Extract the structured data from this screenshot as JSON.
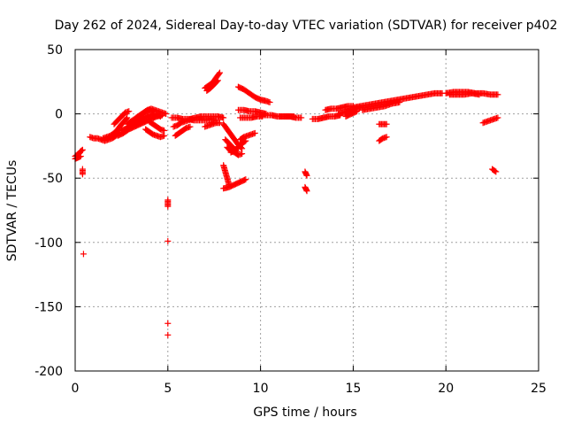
{
  "chart_data": {
    "type": "scatter",
    "title": "Day 262 of 2024, Sidereal Day-to-day VTEC variation (SDTVAR) for receiver p402",
    "xlabel": "GPS time / hours",
    "ylabel": "SDTVAR / TECUs",
    "xlim": [
      0,
      25
    ],
    "ylim": [
      -200,
      50
    ],
    "xticks": [
      0,
      5,
      10,
      15,
      20,
      25
    ],
    "yticks": [
      -200,
      -150,
      -100,
      -50,
      0,
      50
    ],
    "xtick_labels": [
      "0",
      "5",
      "10",
      "15",
      "20",
      "25"
    ],
    "ytick_labels": [
      "-200",
      "-150",
      "-100",
      "-50",
      "0",
      "50"
    ],
    "grid": true,
    "marker": "+",
    "color": "#ff0000",
    "series": [
      {
        "name": "p402",
        "segments": [
          [
            [
              0.0,
              -33
            ],
            [
              0.1,
              -32
            ],
            [
              0.2,
              -31
            ],
            [
              0.3,
              -29
            ],
            [
              0.4,
              -28
            ]
          ],
          [
            [
              0.0,
              -35
            ],
            [
              0.15,
              -34
            ],
            [
              0.3,
              -33
            ]
          ],
          [
            [
              0.4,
              -43
            ],
            [
              0.4,
              -47
            ]
          ],
          [
            [
              0.45,
              -109
            ]
          ],
          [
            [
              0.8,
              -18
            ],
            [
              1.0,
              -19
            ],
            [
              1.2,
              -19
            ],
            [
              1.4,
              -20
            ],
            [
              1.6,
              -21
            ],
            [
              1.8,
              -20
            ],
            [
              2.0,
              -19
            ],
            [
              2.2,
              -17
            ],
            [
              2.4,
              -14
            ]
          ],
          [
            [
              1.5,
              -19
            ],
            [
              1.7,
              -18
            ],
            [
              1.9,
              -17
            ],
            [
              2.1,
              -15
            ],
            [
              2.3,
              -12
            ],
            [
              2.5,
              -8
            ],
            [
              2.7,
              -5
            ],
            [
              2.8,
              -3
            ]
          ],
          [
            [
              2.1,
              -8
            ],
            [
              2.3,
              -5
            ],
            [
              2.5,
              -2
            ],
            [
              2.7,
              1
            ],
            [
              2.9,
              2
            ]
          ],
          [
            [
              2.3,
              -17
            ],
            [
              2.6,
              -15
            ],
            [
              2.9,
              -12
            ],
            [
              3.2,
              -10
            ],
            [
              3.5,
              -8
            ],
            [
              3.8,
              -6
            ],
            [
              4.1,
              -4
            ],
            [
              4.4,
              -2
            ],
            [
              4.7,
              -1
            ]
          ],
          [
            [
              2.5,
              -13
            ],
            [
              2.8,
              -11
            ],
            [
              3.1,
              -8
            ],
            [
              3.4,
              -5
            ],
            [
              3.7,
              -3
            ],
            [
              4.0,
              -1
            ],
            [
              4.3,
              0
            ],
            [
              4.6,
              -2
            ]
          ],
          [
            [
              2.8,
              -8
            ],
            [
              3.1,
              -5
            ],
            [
              3.4,
              -2
            ],
            [
              3.6,
              0
            ],
            [
              3.8,
              2
            ],
            [
              4.0,
              3
            ],
            [
              4.2,
              2
            ]
          ],
          [
            [
              3.3,
              -3
            ],
            [
              3.5,
              -1
            ],
            [
              3.7,
              1
            ],
            [
              3.9,
              3
            ],
            [
              4.1,
              4
            ],
            [
              4.3,
              3
            ],
            [
              4.5,
              2
            ],
            [
              4.7,
              1
            ],
            [
              4.9,
              0
            ]
          ],
          [
            [
              3.8,
              -12
            ],
            [
              4.0,
              -14
            ],
            [
              4.2,
              -16
            ],
            [
              4.4,
              -17
            ],
            [
              4.6,
              -18
            ],
            [
              4.8,
              -17
            ]
          ],
          [
            [
              4.0,
              -6
            ],
            [
              4.2,
              -8
            ],
            [
              4.4,
              -10
            ],
            [
              4.6,
              -12
            ],
            [
              4.8,
              -13
            ]
          ],
          [
            [
              5.0,
              -67
            ],
            [
              5.0,
              -72
            ]
          ],
          [
            [
              5.0,
              -99
            ]
          ],
          [
            [
              5.0,
              -163
            ]
          ],
          [
            [
              5.0,
              -172
            ]
          ],
          [
            [
              5.2,
              -3
            ],
            [
              5.5,
              -3
            ],
            [
              5.8,
              -4
            ],
            [
              6.1,
              -4
            ],
            [
              6.4,
              -5
            ],
            [
              6.7,
              -5
            ],
            [
              7.0,
              -5
            ],
            [
              7.3,
              -5
            ],
            [
              7.6,
              -5
            ]
          ],
          [
            [
              5.3,
              -10
            ],
            [
              5.5,
              -9
            ],
            [
              5.7,
              -7
            ],
            [
              5.9,
              -6
            ],
            [
              6.1,
              -5
            ],
            [
              6.3,
              -4
            ]
          ],
          [
            [
              5.4,
              -17
            ],
            [
              5.6,
              -15
            ],
            [
              5.8,
              -13
            ],
            [
              6.0,
              -11
            ],
            [
              6.2,
              -10
            ]
          ],
          [
            [
              6.2,
              -4
            ],
            [
              6.5,
              -3
            ],
            [
              6.8,
              -2
            ],
            [
              7.1,
              -2
            ],
            [
              7.4,
              -2
            ],
            [
              7.7,
              -2
            ],
            [
              8.0,
              -3
            ]
          ],
          [
            [
              7.0,
              -10
            ],
            [
              7.2,
              -9
            ],
            [
              7.4,
              -8
            ],
            [
              7.6,
              -7
            ],
            [
              7.8,
              -7
            ]
          ],
          [
            [
              7.0,
              20
            ],
            [
              7.2,
              22
            ],
            [
              7.4,
              24
            ],
            [
              7.6,
              28
            ],
            [
              7.8,
              32
            ]
          ],
          [
            [
              7.1,
              18
            ],
            [
              7.3,
              20
            ],
            [
              7.5,
              23
            ],
            [
              7.7,
              26
            ]
          ],
          [
            [
              8.0,
              -8
            ],
            [
              8.2,
              -12
            ],
            [
              8.4,
              -16
            ],
            [
              8.6,
              -20
            ],
            [
              8.8,
              -24
            ],
            [
              9.0,
              -27
            ]
          ],
          [
            [
              8.1,
              -20
            ],
            [
              8.3,
              -23
            ],
            [
              8.5,
              -26
            ],
            [
              8.7,
              -29
            ]
          ],
          [
            [
              8.2,
              -26
            ],
            [
              8.4,
              -29
            ],
            [
              8.6,
              -30
            ],
            [
              8.8,
              -32
            ],
            [
              9.0,
              -31
            ]
          ],
          [
            [
              8.0,
              -40
            ],
            [
              8.1,
              -45
            ],
            [
              8.2,
              -50
            ],
            [
              8.3,
              -55
            ]
          ],
          [
            [
              8.0,
              -58
            ],
            [
              8.3,
              -57
            ],
            [
              8.6,
              -55
            ],
            [
              8.9,
              -53
            ],
            [
              9.2,
              -51
            ]
          ],
          [
            [
              8.9,
              -20
            ],
            [
              9.1,
              -18
            ],
            [
              9.3,
              -17
            ],
            [
              9.5,
              -16
            ],
            [
              9.7,
              -15
            ]
          ],
          [
            [
              8.4,
              -30
            ],
            [
              8.6,
              -28
            ],
            [
              8.8,
              -26
            ],
            [
              9.0,
              -23
            ],
            [
              9.2,
              -21
            ]
          ],
          [
            [
              8.8,
              21
            ],
            [
              9.1,
              19
            ],
            [
              9.4,
              16
            ],
            [
              9.7,
              13
            ],
            [
              10.0,
              11
            ],
            [
              10.3,
              10
            ],
            [
              10.5,
              9
            ]
          ],
          [
            [
              8.8,
              3
            ],
            [
              9.1,
              3
            ],
            [
              9.4,
              2
            ],
            [
              9.7,
              2
            ],
            [
              10.0,
              1
            ],
            [
              10.3,
              0
            ]
          ],
          [
            [
              8.9,
              -3
            ],
            [
              9.2,
              -3
            ],
            [
              9.5,
              -3
            ],
            [
              9.8,
              -2
            ],
            [
              10.1,
              -2
            ]
          ],
          [
            [
              10.0,
              -1
            ],
            [
              10.3,
              -1
            ],
            [
              10.6,
              -1
            ],
            [
              10.9,
              -2
            ],
            [
              11.2,
              -2
            ],
            [
              11.5,
              -2
            ],
            [
              11.8,
              -2
            ]
          ],
          [
            [
              11.0,
              -2
            ],
            [
              11.3,
              -2
            ],
            [
              11.6,
              -2
            ],
            [
              11.9,
              -3
            ],
            [
              12.2,
              -3
            ]
          ],
          [
            [
              12.4,
              -45
            ],
            [
              12.5,
              -48
            ]
          ],
          [
            [
              12.4,
              -57
            ],
            [
              12.5,
              -60
            ]
          ],
          [
            [
              12.8,
              -4
            ],
            [
              13.1,
              -4
            ],
            [
              13.4,
              -3
            ],
            [
              13.7,
              -2
            ],
            [
              14.0,
              -2
            ],
            [
              14.3,
              -1
            ]
          ],
          [
            [
              13.5,
              3
            ],
            [
              13.8,
              4
            ],
            [
              14.1,
              4
            ],
            [
              14.4,
              5
            ],
            [
              14.7,
              6
            ],
            [
              15.0,
              6
            ]
          ],
          [
            [
              14.2,
              0
            ],
            [
              14.5,
              1
            ],
            [
              14.8,
              3
            ],
            [
              15.1,
              4
            ],
            [
              15.4,
              5
            ]
          ],
          [
            [
              14.6,
              -2
            ],
            [
              14.9,
              0
            ],
            [
              15.2,
              2
            ]
          ],
          [
            [
              15.0,
              5
            ],
            [
              15.4,
              6
            ],
            [
              15.8,
              7
            ],
            [
              16.2,
              8
            ],
            [
              16.6,
              9
            ],
            [
              17.0,
              10
            ],
            [
              17.4,
              11
            ],
            [
              17.8,
              12
            ],
            [
              18.2,
              13
            ],
            [
              18.6,
              14
            ],
            [
              19.0,
              15
            ],
            [
              19.4,
              16
            ],
            [
              19.8,
              16
            ]
          ],
          [
            [
              15.5,
              3
            ],
            [
              15.9,
              4
            ],
            [
              16.3,
              5
            ],
            [
              16.7,
              6
            ],
            [
              17.1,
              8
            ],
            [
              17.5,
              9
            ]
          ],
          [
            [
              16.4,
              -8
            ],
            [
              16.6,
              -8
            ],
            [
              16.8,
              -8
            ]
          ],
          [
            [
              16.4,
              -21
            ],
            [
              16.6,
              -19
            ],
            [
              16.8,
              -18
            ]
          ],
          [
            [
              20.0,
              16
            ],
            [
              20.4,
              17
            ],
            [
              20.8,
              17
            ],
            [
              21.2,
              17
            ],
            [
              21.6,
              16
            ],
            [
              22.0,
              16
            ],
            [
              22.4,
              15
            ],
            [
              22.8,
              15
            ]
          ],
          [
            [
              20.2,
              15
            ],
            [
              20.6,
              15
            ],
            [
              21.0,
              15
            ],
            [
              21.4,
              16
            ],
            [
              21.8,
              15
            ]
          ],
          [
            [
              22.0,
              -7
            ],
            [
              22.2,
              -6
            ],
            [
              22.4,
              -5
            ],
            [
              22.6,
              -4
            ],
            [
              22.8,
              -3
            ]
          ],
          [
            [
              22.5,
              -43
            ],
            [
              22.7,
              -45
            ]
          ]
        ]
      }
    ]
  }
}
